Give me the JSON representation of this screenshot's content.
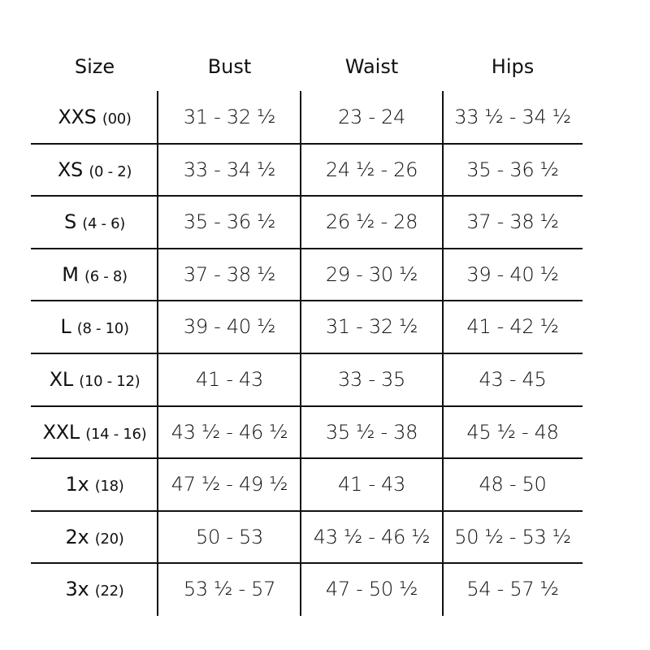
{
  "headers": [
    "Size",
    "Bust",
    "Waist",
    "Hips"
  ],
  "rows": [
    {
      "size": "XXS",
      "range": "(00)",
      "bust": "31 - 32 ½",
      "waist": "23 - 24",
      "hips": "33 ½ - 34 ½"
    },
    {
      "size": "XS",
      "range": "(0 - 2)",
      "bust": "33 - 34 ½",
      "waist": "24 ½ - 26",
      "hips": "35 - 36 ½"
    },
    {
      "size": "S",
      "range": "(4 - 6)",
      "bust": "35 - 36 ½",
      "waist": "26 ½ - 28",
      "hips": "37 - 38 ½"
    },
    {
      "size": "M",
      "range": "(6 - 8)",
      "bust": "37 - 38 ½",
      "waist": "29 - 30 ½",
      "hips": "39 - 40 ½"
    },
    {
      "size": "L",
      "range": "(8 - 10)",
      "bust": "39 - 40 ½",
      "waist": "31 - 32 ½",
      "hips": "41 - 42 ½"
    },
    {
      "size": "XL",
      "range": "(10 - 12)",
      "bust": "41 - 43",
      "waist": "33 - 35",
      "hips": "43 - 45"
    },
    {
      "size": "XXL",
      "range": "(14 - 16)",
      "bust": "43 ½ - 46 ½",
      "waist": "35 ½ - 38",
      "hips": "45 ½ - 48"
    },
    {
      "size": "1x",
      "range": "(18)",
      "bust": "47 ½ - 49 ½",
      "waist": "41 - 43",
      "hips": "48 - 50"
    },
    {
      "size": "2x",
      "range": "(20)",
      "bust": "50 - 53",
      "waist": "43 ½ - 46 ½",
      "hips": "50 ½ - 53 ½"
    },
    {
      "size": "3x",
      "range": "(22)",
      "bust": "53 ½ - 57",
      "waist": "47 - 50 ½",
      "hips": "54 - 57 ½"
    }
  ]
}
